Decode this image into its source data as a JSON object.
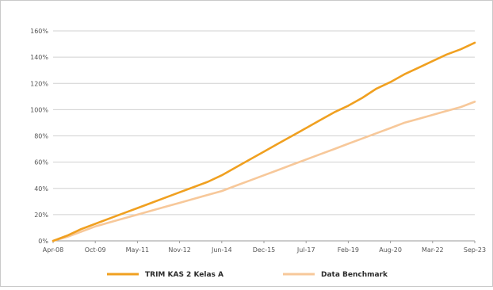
{
  "chart_data": {
    "type": "line",
    "x_ticks": [
      "Apr-08",
      "Oct-09",
      "May-11",
      "Nov-12",
      "Jun-14",
      "Dec-15",
      "Jul-17",
      "Feb-19",
      "Aug-20",
      "Mar-22",
      "Sep-23"
    ],
    "y_ticks": [
      "0%",
      "20%",
      "40%",
      "60%",
      "80%",
      "100%",
      "120%",
      "140%",
      "160%"
    ],
    "ylim": [
      0,
      160
    ],
    "y_unit": "%",
    "grid": "horizontal",
    "legend_position": "bottom",
    "x": [
      "Apr-08",
      "Oct-08",
      "Apr-09",
      "Oct-09",
      "Apr-10",
      "Oct-10",
      "May-11",
      "Nov-11",
      "May-12",
      "Nov-12",
      "May-13",
      "Nov-13",
      "Jun-14",
      "Dec-14",
      "Jun-15",
      "Dec-15",
      "Jun-16",
      "Dec-16",
      "Jul-17",
      "Jan-18",
      "Jul-18",
      "Feb-19",
      "Aug-19",
      "Feb-20",
      "Aug-20",
      "Feb-21",
      "Aug-21",
      "Mar-22",
      "Sep-22",
      "Mar-23",
      "Sep-23"
    ],
    "series": [
      {
        "name": "TRIM KAS 2 Kelas A",
        "color": "#f0a020",
        "values": [
          0,
          4,
          9,
          13,
          17,
          21,
          25,
          29,
          33,
          37,
          41,
          45,
          50,
          56,
          62,
          68,
          74,
          80,
          86,
          92,
          98,
          103,
          109,
          116,
          121,
          127,
          132,
          137,
          142,
          146,
          151
        ]
      },
      {
        "name": "Data Benchmark",
        "color": "#f7c89a",
        "values": [
          0,
          3,
          7,
          11,
          14,
          17,
          20,
          23,
          26,
          29,
          32,
          35,
          38,
          42,
          46,
          50,
          54,
          58,
          62,
          66,
          70,
          74,
          78,
          82,
          86,
          90,
          93,
          96,
          99,
          102,
          106
        ]
      }
    ]
  }
}
